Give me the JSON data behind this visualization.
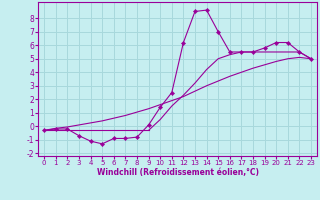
{
  "xlabel": "Windchill (Refroidissement éolien,°C)",
  "bg_color": "#c6eef0",
  "line_color": "#990099",
  "grid_color": "#a8d8dc",
  "line1_x": [
    0,
    1,
    2,
    3,
    4,
    5,
    6,
    7,
    8,
    9,
    10,
    11,
    12,
    13,
    14,
    15,
    16,
    17,
    18,
    19,
    20,
    21,
    22,
    23
  ],
  "line1_y": [
    -0.3,
    -0.2,
    -0.2,
    -0.7,
    -1.1,
    -1.3,
    -0.9,
    -0.9,
    -0.8,
    0.1,
    1.4,
    2.5,
    6.2,
    8.5,
    8.6,
    7.0,
    5.5,
    5.5,
    5.5,
    5.8,
    6.2,
    6.2,
    5.5,
    5.0
  ],
  "line2_x": [
    0,
    23
  ],
  "line2_y": [
    -0.3,
    5.0
  ],
  "line3_x": [
    0,
    23
  ],
  "line3_y": [
    -0.3,
    5.0
  ],
  "line2_mid_x": [
    9,
    10,
    11,
    12,
    13,
    14,
    15,
    16,
    17,
    18,
    19,
    20,
    21,
    22,
    23
  ],
  "line2_mid_y": [
    -0.3,
    0.5,
    1.5,
    2.3,
    3.2,
    4.2,
    5.0,
    5.3,
    5.5,
    5.5,
    5.5,
    5.5,
    5.5,
    5.5,
    5.0
  ],
  "line3_full_x": [
    0,
    1,
    2,
    3,
    4,
    5,
    6,
    7,
    8,
    9,
    10,
    11,
    12,
    13,
    14,
    15,
    16,
    17,
    18,
    19,
    20,
    21,
    22,
    23
  ],
  "line3_full_y": [
    -0.3,
    -0.15,
    -0.05,
    0.1,
    0.25,
    0.4,
    0.6,
    0.8,
    1.05,
    1.3,
    1.6,
    1.9,
    2.2,
    2.6,
    3.0,
    3.35,
    3.7,
    4.0,
    4.3,
    4.55,
    4.8,
    5.0,
    5.1,
    5.0
  ],
  "xlim": [
    -0.5,
    23.5
  ],
  "ylim": [
    -2.2,
    9.2
  ],
  "yticks": [
    -2,
    -1,
    0,
    1,
    2,
    3,
    4,
    5,
    6,
    7,
    8
  ],
  "xticks": [
    0,
    1,
    2,
    3,
    4,
    5,
    6,
    7,
    8,
    9,
    10,
    11,
    12,
    13,
    14,
    15,
    16,
    17,
    18,
    19,
    20,
    21,
    22,
    23
  ],
  "xlabel_fontsize": 5.5,
  "tick_fontsize": 5.5
}
